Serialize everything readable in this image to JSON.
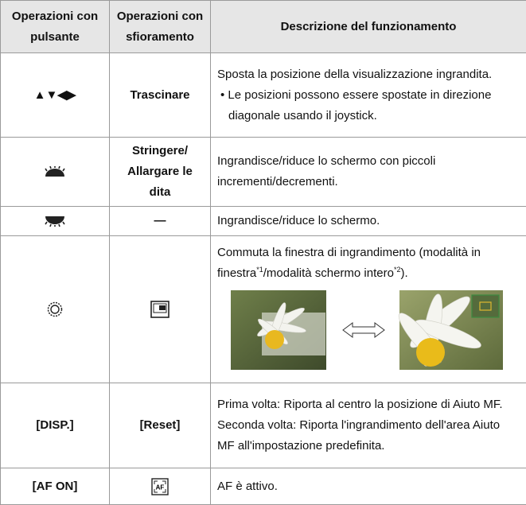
{
  "table": {
    "header": [
      "Operazioni con pulsante",
      "Operazioni con sfioramento",
      "Descrizione del funzionamento"
    ],
    "rows": [
      {
        "button": "▲▼◀▶",
        "touch": "Trascinare",
        "description": "Sposta la posizione della visualizzazione ingrandita.",
        "bullet": "Le posizioni possono essere spostate in direzione diagonale usando il joystick."
      },
      {
        "touch": "Stringere/ Allargare le dita",
        "description": "Ingrandisce/riduce lo schermo con piccoli incrementi/decrementi."
      },
      {
        "touch": "—",
        "description": "Ingrandisce/riduce lo schermo."
      },
      {
        "description_parts": [
          "Commuta la finestra di ingrandimento (modalità in finestra",
          "*1",
          "/modalità schermo intero",
          "*2",
          ")."
        ]
      },
      {
        "button": "[DISP.]",
        "touch": "[Reset]",
        "description_lines": [
          "Prima volta: Riporta al centro la posizione di Aiuto MF.",
          "Seconda volta: Riporta l'ingrandimento dell'area Aiuto MF all'impostazione predefinita."
        ]
      },
      {
        "button": "[AF ON]",
        "touch_icon": "AF",
        "description": "AF è attivo."
      }
    ]
  }
}
